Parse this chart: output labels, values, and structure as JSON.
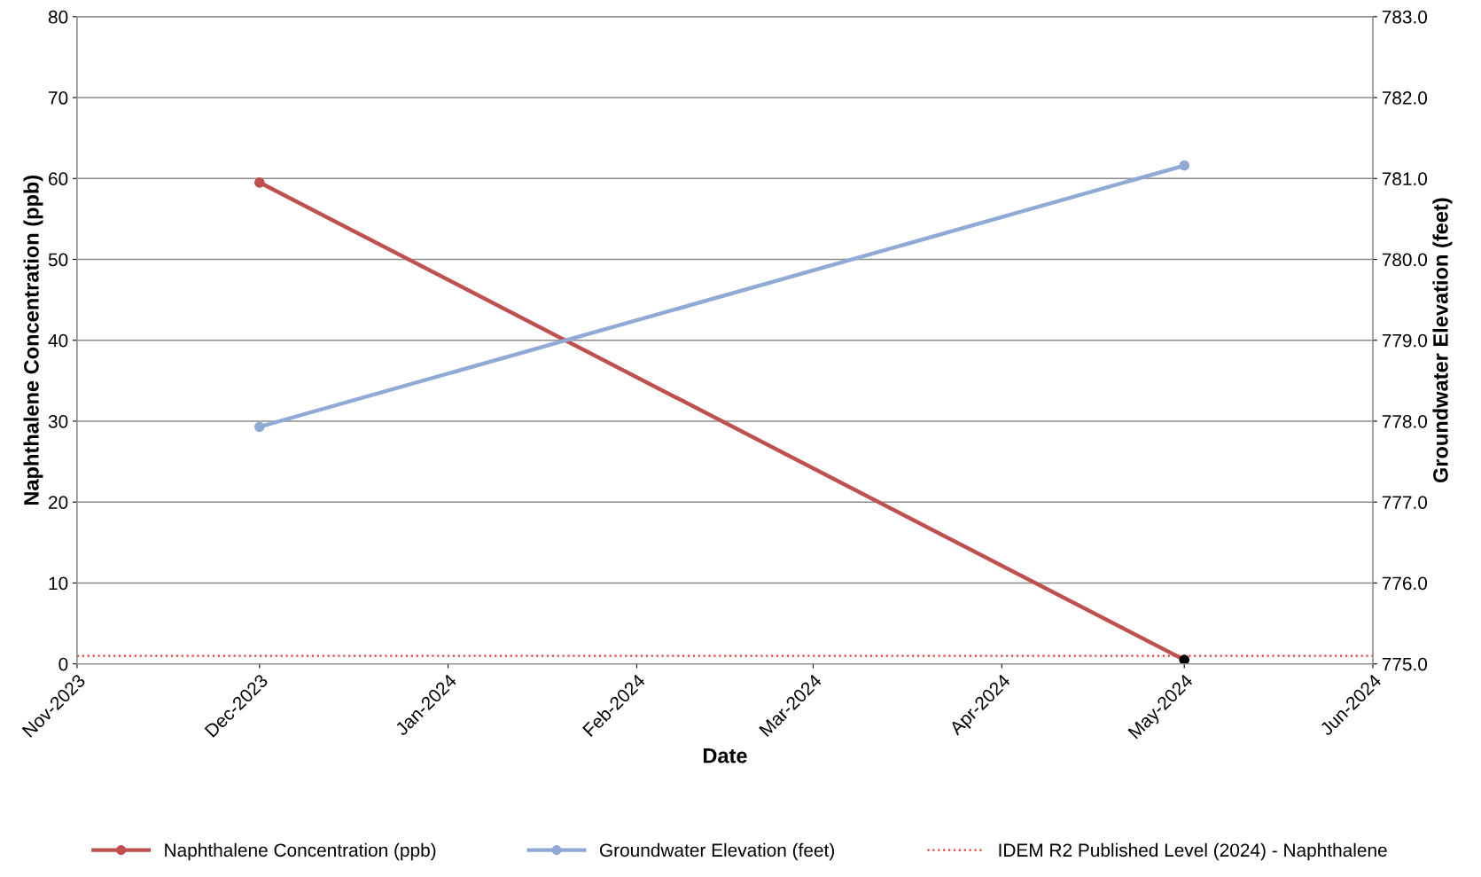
{
  "chart_data": {
    "type": "line",
    "xlabel": "Date",
    "ylabel": "Naphthalene Concentration (ppb)",
    "y2label": "Groundwater Elevation (feet)",
    "x": [
      "2023-12",
      "2024-05"
    ],
    "series": [
      {
        "name": "Naphthalene Concentration (ppb)",
        "color": "#c0504d",
        "colors": [
          "#c0504d",
          "#000000"
        ],
        "values": [
          59.5,
          0.5
        ]
      },
      {
        "name": "Groundwater Elevation (feet)",
        "color": "#8faad4",
        "axis": "y2",
        "values": [
          777.93,
          781.16
        ]
      }
    ],
    "ref_lines": [
      {
        "axis": "y",
        "value": 1,
        "label": "IDEM R2 Published Level (2024) - Naphthalene",
        "color": "#e03c3c",
        "line_style": "dotted"
      }
    ],
    "xlim": [
      "2023-11",
      "2024-06"
    ],
    "xticks": [
      {
        "value": "2023-11",
        "label": "Nov-2023"
      },
      {
        "value": "2023-12",
        "label": "Dec-2023"
      },
      {
        "value": "2024-01",
        "label": "Jan-2024"
      },
      {
        "value": "2024-02",
        "label": "Feb-2024"
      },
      {
        "value": "2024-03",
        "label": "Mar-2024"
      },
      {
        "value": "2024-04",
        "label": "Apr-2024"
      },
      {
        "value": "2024-05",
        "label": "May-2024"
      },
      {
        "value": "2024-06",
        "label": "Jun-2024"
      }
    ],
    "ylim": [
      0,
      80
    ],
    "yticks": [
      0,
      10,
      20,
      30,
      40,
      50,
      60,
      70,
      80
    ],
    "y2lim": [
      775,
      783
    ],
    "y2ticks": [
      {
        "value": 775,
        "label": "775.0"
      },
      {
        "value": 776,
        "label": "776.0"
      },
      {
        "value": 777,
        "label": "777.0"
      },
      {
        "value": 778,
        "label": "778.0"
      },
      {
        "value": 779,
        "label": "779.0"
      },
      {
        "value": 780,
        "label": "780.0"
      },
      {
        "value": 781,
        "label": "781.0"
      },
      {
        "value": 782,
        "label": "782.0"
      },
      {
        "value": 783,
        "label": "783.0"
      }
    ],
    "grid": "y",
    "legend": "bottom",
    "marker": "circle",
    "line_style": "solid"
  }
}
